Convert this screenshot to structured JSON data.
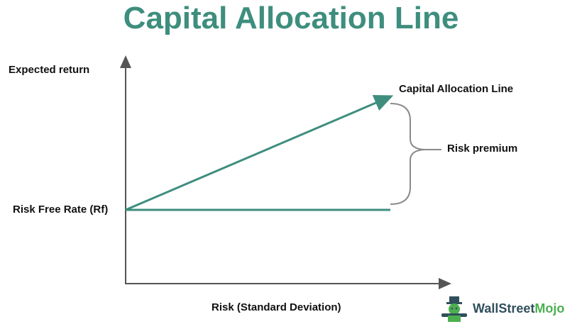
{
  "title": "Capital Allocation Line",
  "labels": {
    "y_axis": "Expected return",
    "x_axis": "Risk (Standard Deviation)",
    "risk_free": "Risk Free Rate (Rf)",
    "cal": "Capital Allocation Line",
    "risk_premium": "Risk premium"
  },
  "logo": {
    "part1": "WallStreet",
    "part2": "Mojo"
  },
  "colors": {
    "title": "#3e8e7e",
    "line": "#3e8e7e",
    "axis": "#555555",
    "bracket": "#8a8a8a"
  }
}
